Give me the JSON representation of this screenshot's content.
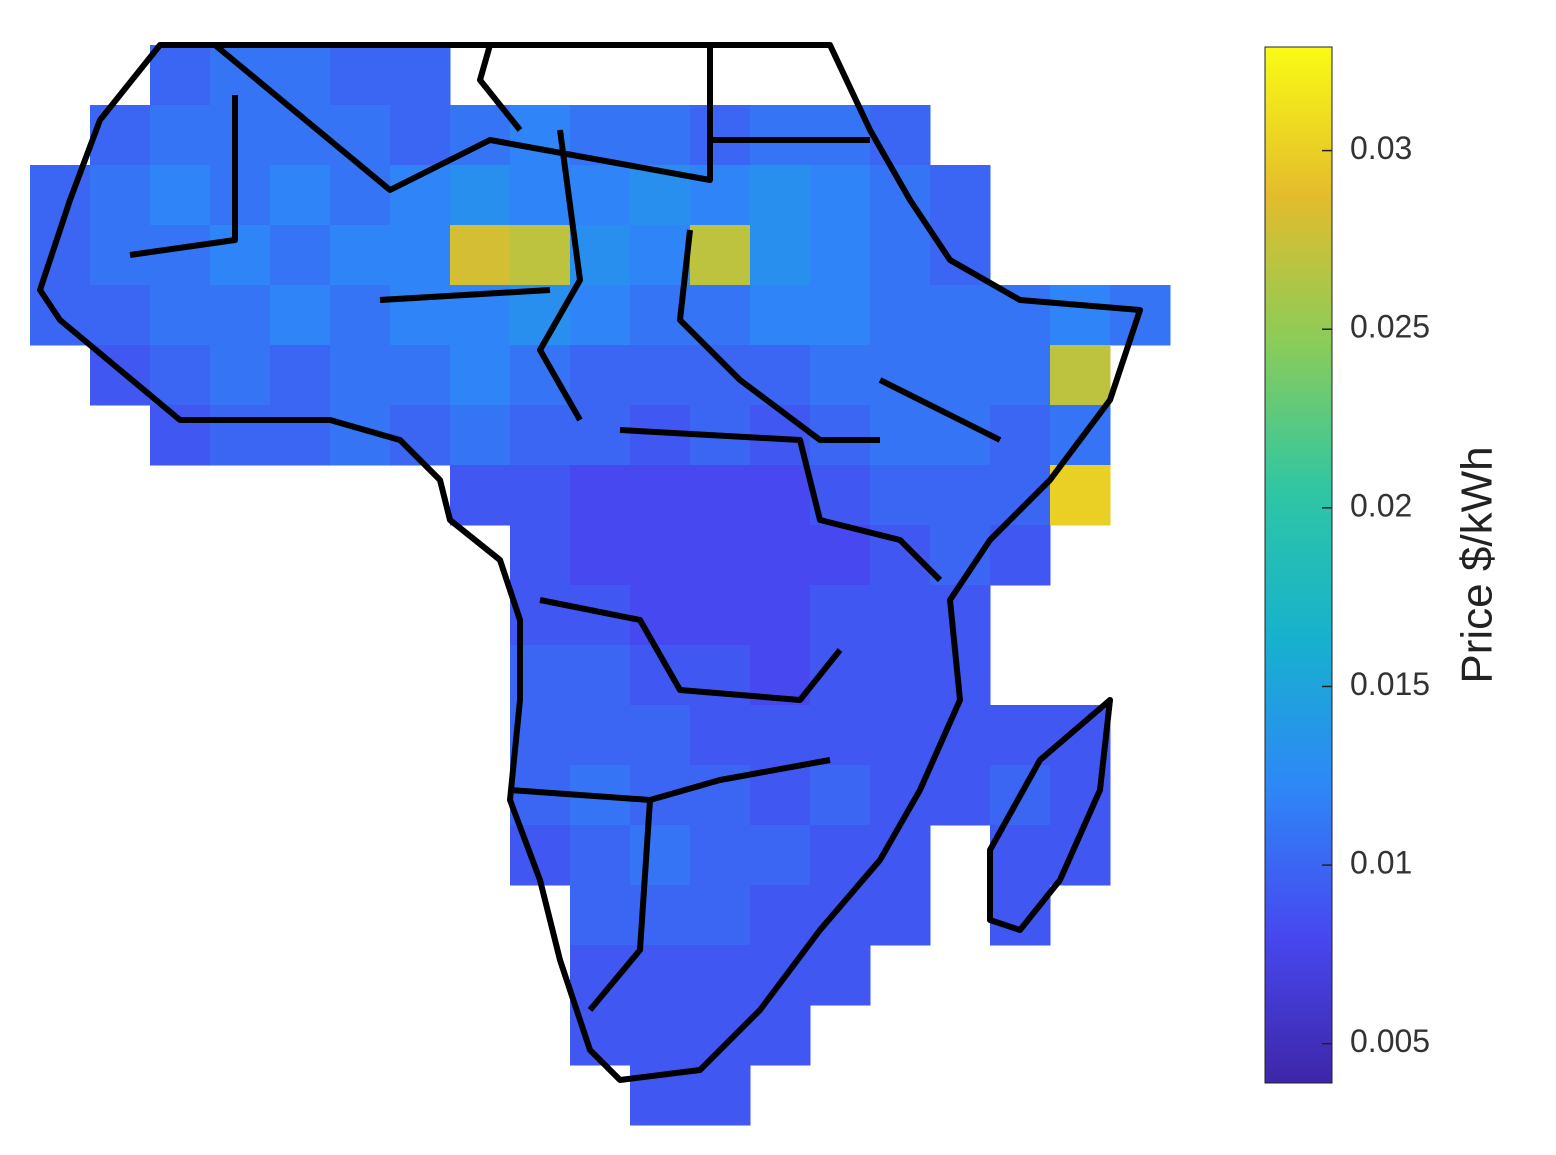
{
  "chart_data": {
    "type": "heatmap",
    "colorbar_label": "Price $/kWh",
    "clim": [
      0.0039,
      0.0329
    ],
    "colorbar_ticks": [
      0.005,
      0.01,
      0.015,
      0.02,
      0.025,
      0.03
    ],
    "colormap": [
      "#3e26a8",
      "#4748f0",
      "#2e87f7",
      "#17b1ce",
      "#2fc6a4",
      "#8acc59",
      "#e4bc2c",
      "#f9fb15"
    ],
    "grid": [
      [
        null,
        null,
        0.01,
        0.011,
        0.011,
        0.01,
        0.01,
        null,
        null,
        null,
        null,
        null,
        null,
        null,
        null,
        null,
        null,
        null,
        null
      ],
      [
        null,
        0.01,
        0.011,
        0.011,
        0.011,
        0.011,
        0.01,
        0.011,
        0.012,
        0.011,
        0.011,
        0.01,
        0.011,
        0.011,
        0.01,
        null,
        null,
        null,
        null
      ],
      [
        0.01,
        0.011,
        0.012,
        0.011,
        0.012,
        0.011,
        0.012,
        0.013,
        0.012,
        0.012,
        0.013,
        0.012,
        0.013,
        0.012,
        0.011,
        0.01,
        null,
        null,
        null
      ],
      [
        0.01,
        0.011,
        0.011,
        0.012,
        0.011,
        0.012,
        0.012,
        0.028,
        0.027,
        0.013,
        0.012,
        0.027,
        0.013,
        0.012,
        0.011,
        0.01,
        null,
        null,
        null
      ],
      [
        0.01,
        0.01,
        0.011,
        0.011,
        0.012,
        0.011,
        0.012,
        0.012,
        0.013,
        0.012,
        0.011,
        0.011,
        0.012,
        0.012,
        0.011,
        0.011,
        0.011,
        0.012,
        0.011
      ],
      [
        null,
        0.009,
        0.01,
        0.011,
        0.01,
        0.011,
        0.011,
        0.012,
        0.011,
        0.01,
        0.01,
        0.01,
        0.01,
        0.011,
        0.011,
        0.011,
        0.011,
        0.027,
        null
      ],
      [
        null,
        null,
        0.009,
        0.01,
        0.01,
        0.011,
        0.01,
        0.011,
        0.01,
        0.01,
        0.009,
        0.01,
        0.009,
        0.01,
        0.011,
        0.011,
        0.01,
        0.011,
        null
      ],
      [
        null,
        null,
        null,
        null,
        null,
        null,
        null,
        0.009,
        0.009,
        0.008,
        0.008,
        0.008,
        0.008,
        0.009,
        0.01,
        0.01,
        0.01,
        0.03,
        null
      ],
      [
        null,
        null,
        null,
        null,
        null,
        null,
        null,
        null,
        0.009,
        0.008,
        0.008,
        0.008,
        0.008,
        0.008,
        0.009,
        0.01,
        0.009,
        null,
        null
      ],
      [
        null,
        null,
        null,
        null,
        null,
        null,
        null,
        null,
        0.009,
        0.009,
        0.008,
        0.008,
        0.008,
        0.009,
        0.009,
        0.009,
        null,
        null,
        null
      ],
      [
        null,
        null,
        null,
        null,
        null,
        null,
        null,
        null,
        0.01,
        0.01,
        0.009,
        0.009,
        0.008,
        0.009,
        0.009,
        0.009,
        null,
        null,
        null
      ],
      [
        null,
        null,
        null,
        null,
        null,
        null,
        null,
        null,
        0.01,
        0.01,
        0.01,
        0.009,
        0.009,
        0.009,
        0.009,
        0.009,
        0.009,
        0.009,
        null
      ],
      [
        null,
        null,
        null,
        null,
        null,
        null,
        null,
        null,
        0.01,
        0.011,
        0.01,
        0.01,
        0.009,
        0.01,
        0.009,
        0.009,
        0.01,
        0.009,
        null
      ],
      [
        null,
        null,
        null,
        null,
        null,
        null,
        null,
        null,
        0.009,
        0.01,
        0.011,
        0.01,
        0.01,
        0.009,
        0.009,
        null,
        0.009,
        0.009,
        null
      ],
      [
        null,
        null,
        null,
        null,
        null,
        null,
        null,
        null,
        null,
        0.01,
        0.01,
        0.01,
        0.009,
        0.009,
        0.009,
        null,
        0.009,
        null,
        null
      ],
      [
        null,
        null,
        null,
        null,
        null,
        null,
        null,
        null,
        null,
        0.009,
        0.009,
        0.009,
        0.009,
        0.009,
        null,
        null,
        null,
        null,
        null
      ],
      [
        null,
        null,
        null,
        null,
        null,
        null,
        null,
        null,
        null,
        0.009,
        0.009,
        0.009,
        0.009,
        null,
        null,
        null,
        null,
        null,
        null
      ],
      [
        null,
        null,
        null,
        null,
        null,
        null,
        null,
        null,
        null,
        null,
        0.009,
        0.009,
        null,
        null,
        null,
        null,
        null,
        null,
        null
      ]
    ]
  }
}
